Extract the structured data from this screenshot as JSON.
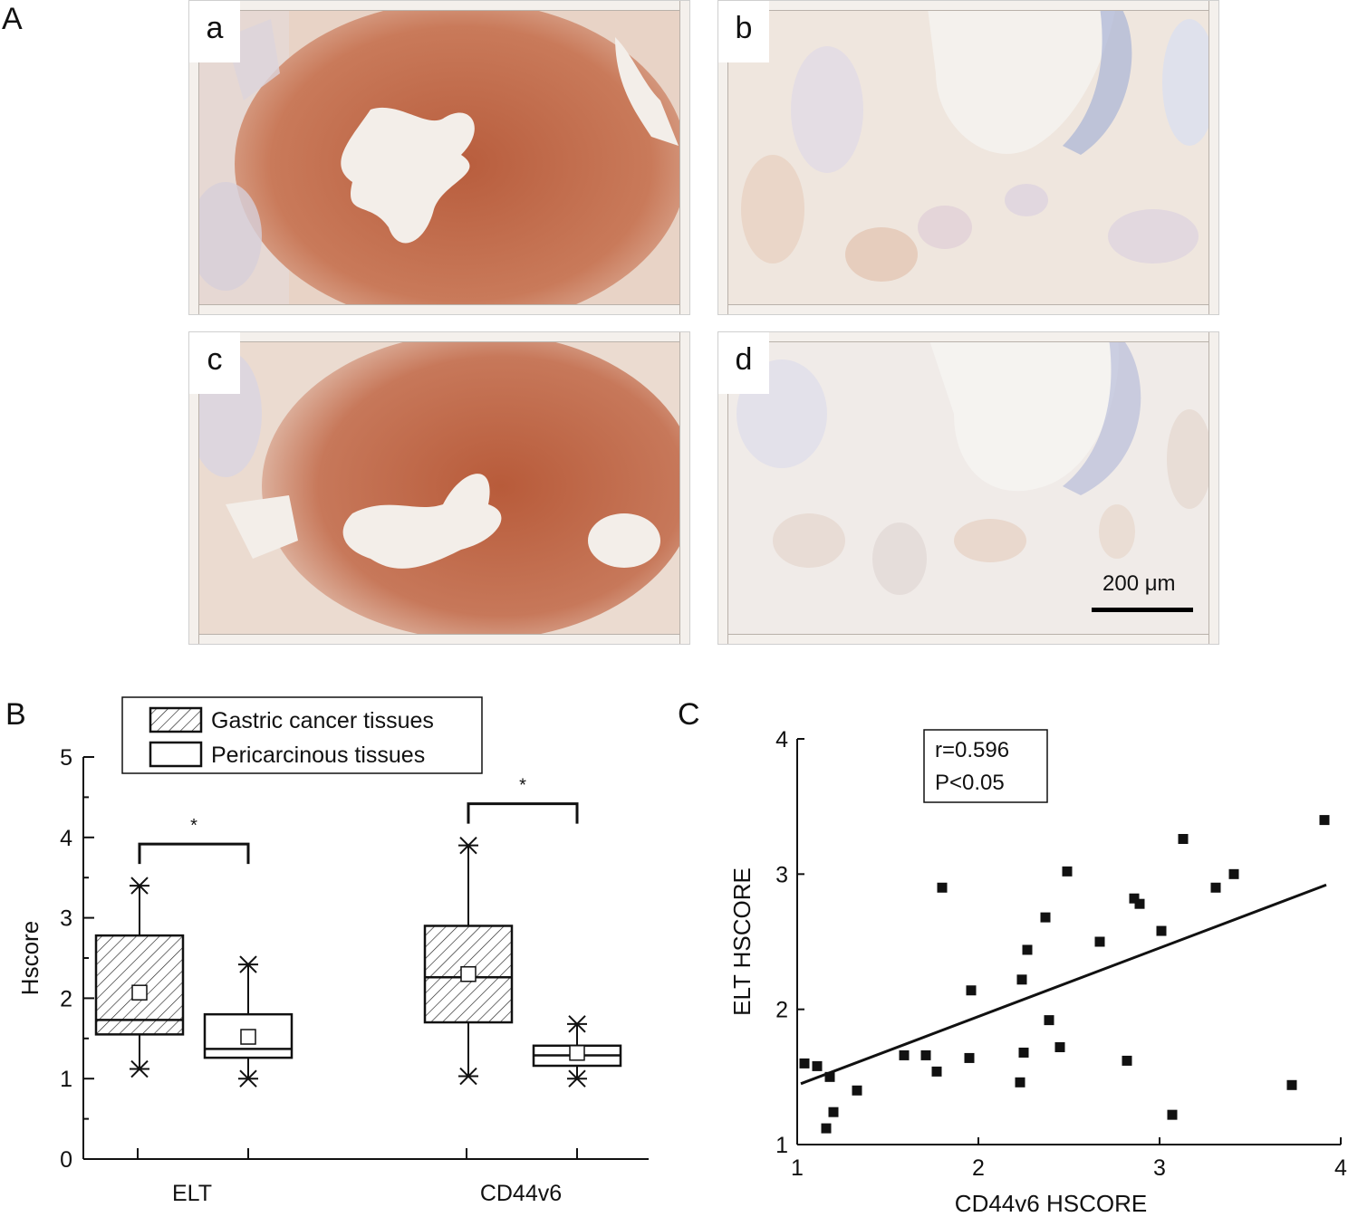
{
  "panels": {
    "A": "A",
    "B": "B",
    "C": "C"
  },
  "micrographs": {
    "a": "a",
    "b": "b",
    "c": "c",
    "d": "d",
    "scale_bar": "200 μm"
  },
  "colors": {
    "stain_strong": "#c9714f",
    "stain_background": "#f2e6dd",
    "hematoxylin": "#6f7fbf",
    "lumen": "#f4f1ed"
  },
  "chart_data": [
    {
      "type": "box",
      "ylabel": "Hscore",
      "ylim": [
        0,
        5
      ],
      "yticks": [
        0,
        1,
        2,
        3,
        4,
        5
      ],
      "categories": [
        "ELT",
        "CD44v6"
      ],
      "legend": {
        "placement": "top",
        "entries": [
          {
            "label": "Gastric cancer tissues",
            "pattern": "hatched"
          },
          {
            "label": "Pericarcinous tissues",
            "pattern": "open"
          }
        ]
      },
      "series": [
        {
          "name": "Gastric cancer tissues",
          "boxes": [
            {
              "category": "ELT",
              "min": 1.12,
              "q1": 1.55,
              "median": 1.73,
              "q3": 2.78,
              "max": 3.4,
              "mean": 2.07
            },
            {
              "category": "CD44v6",
              "min": 1.03,
              "q1": 1.7,
              "median": 2.26,
              "q3": 2.9,
              "max": 3.9,
              "mean": 2.3
            }
          ]
        },
        {
          "name": "Pericarcinous tissues",
          "boxes": [
            {
              "category": "ELT",
              "min": 1.0,
              "q1": 1.26,
              "median": 1.37,
              "q3": 1.8,
              "max": 2.42,
              "mean": 1.52
            },
            {
              "category": "CD44v6",
              "min": 1.0,
              "q1": 1.16,
              "median": 1.29,
              "q3": 1.41,
              "max": 1.68,
              "mean": 1.32
            }
          ]
        }
      ],
      "significance": [
        {
          "category": "ELT",
          "label": "*"
        },
        {
          "category": "CD44v6",
          "label": "*"
        }
      ]
    },
    {
      "type": "scatter",
      "xlabel": "CD44v6 HSCORE",
      "ylabel": "ELT HSCORE",
      "xlim": [
        1,
        4
      ],
      "ylim": [
        1,
        4
      ],
      "xticks": [
        1,
        2,
        3,
        4
      ],
      "yticks": [
        1,
        2,
        3,
        4
      ],
      "annotation": [
        "r=0.596",
        "P<0.05"
      ],
      "points": [
        [
          1.04,
          1.6
        ],
        [
          1.11,
          1.58
        ],
        [
          1.16,
          1.12
        ],
        [
          1.18,
          1.5
        ],
        [
          1.2,
          1.24
        ],
        [
          1.33,
          1.4
        ],
        [
          1.59,
          1.66
        ],
        [
          1.71,
          1.66
        ],
        [
          1.77,
          1.54
        ],
        [
          1.8,
          2.9
        ],
        [
          1.95,
          1.64
        ],
        [
          1.96,
          2.14
        ],
        [
          2.23,
          1.46
        ],
        [
          2.24,
          2.22
        ],
        [
          2.25,
          1.68
        ],
        [
          2.27,
          2.44
        ],
        [
          2.37,
          2.68
        ],
        [
          2.39,
          1.92
        ],
        [
          2.45,
          1.72
        ],
        [
          2.49,
          3.02
        ],
        [
          2.67,
          2.5
        ],
        [
          2.82,
          1.62
        ],
        [
          2.86,
          2.82
        ],
        [
          2.89,
          2.78
        ],
        [
          3.01,
          2.58
        ],
        [
          3.07,
          1.22
        ],
        [
          3.13,
          3.26
        ],
        [
          3.31,
          2.9
        ],
        [
          3.41,
          3.0
        ],
        [
          3.73,
          1.44
        ],
        [
          3.91,
          3.4
        ]
      ],
      "fit_line": {
        "x": [
          1.02,
          3.92
        ],
        "y": [
          1.45,
          2.92
        ]
      }
    }
  ]
}
